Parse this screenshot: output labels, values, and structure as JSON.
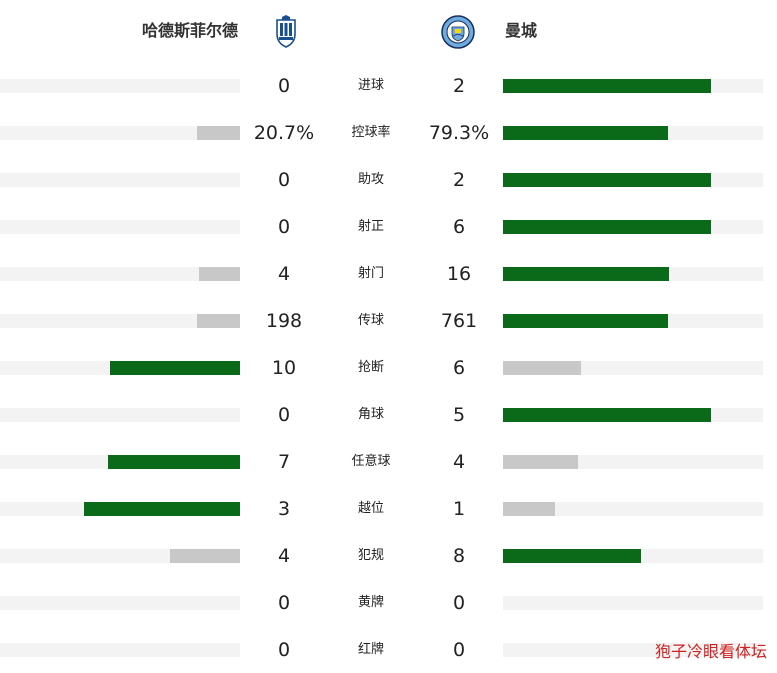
{
  "teams": {
    "home": {
      "name": "哈德斯菲尔德",
      "crest_icon": "huddersfield-crest-icon"
    },
    "away": {
      "name": "曼城",
      "crest_icon": "manchester-city-crest-icon"
    }
  },
  "colors": {
    "leader": "#0a6a1a",
    "trailer": "#c8c8c8",
    "track": "#f3f3f3"
  },
  "stats": [
    {
      "label": "进球",
      "home": "0",
      "away": "2",
      "home_share": 0,
      "away_share": 0.8,
      "leader": "away"
    },
    {
      "label": "控球率",
      "home": "20.7%",
      "away": "79.3%",
      "home_share": 0.18,
      "away_share": 0.635,
      "leader": "away"
    },
    {
      "label": "助攻",
      "home": "0",
      "away": "2",
      "home_share": 0,
      "away_share": 0.8,
      "leader": "away"
    },
    {
      "label": "射正",
      "home": "0",
      "away": "6",
      "home_share": 0,
      "away_share": 0.8,
      "leader": "away"
    },
    {
      "label": "射门",
      "home": "4",
      "away": "16",
      "home_share": 0.17,
      "away_share": 0.64,
      "leader": "away"
    },
    {
      "label": "传球",
      "home": "198",
      "away": "761",
      "home_share": 0.18,
      "away_share": 0.635,
      "leader": "away"
    },
    {
      "label": "抢断",
      "home": "10",
      "away": "6",
      "home_share": 0.54,
      "away_share": 0.3,
      "leader": "home"
    },
    {
      "label": "角球",
      "home": "0",
      "away": "5",
      "home_share": 0,
      "away_share": 0.8,
      "leader": "away"
    },
    {
      "label": "任意球",
      "home": "7",
      "away": "4",
      "home_share": 0.55,
      "away_share": 0.29,
      "leader": "home"
    },
    {
      "label": "越位",
      "home": "3",
      "away": "1",
      "home_share": 0.65,
      "away_share": 0.2,
      "leader": "home"
    },
    {
      "label": "犯规",
      "home": "4",
      "away": "8",
      "home_share": 0.29,
      "away_share": 0.53,
      "leader": "away"
    },
    {
      "label": "黄牌",
      "home": "0",
      "away": "0",
      "home_share": 0,
      "away_share": 0,
      "leader": "none"
    },
    {
      "label": "红牌",
      "home": "0",
      "away": "0",
      "home_share": 0,
      "away_share": 0,
      "leader": "none"
    }
  ],
  "watermark": "狍子冷眼看体坛"
}
